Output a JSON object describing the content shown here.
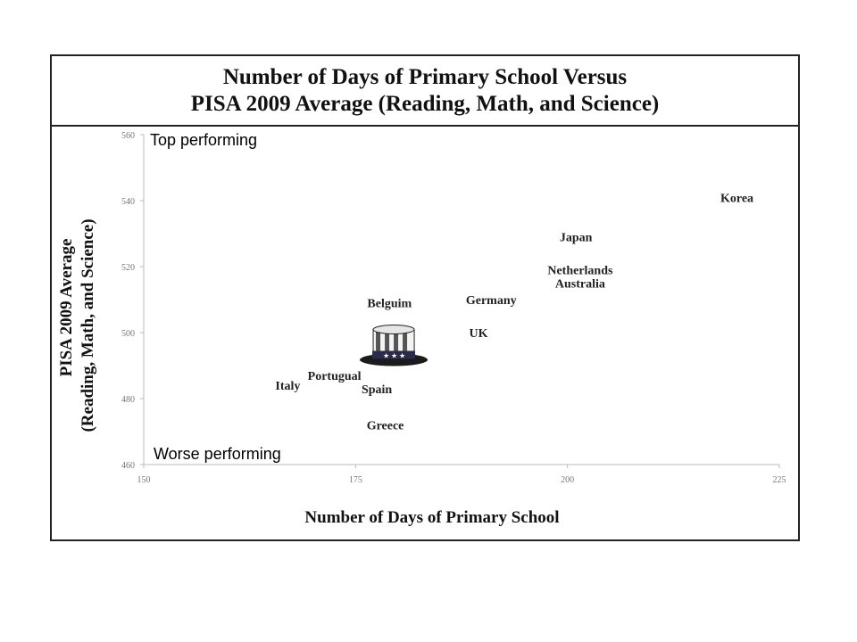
{
  "chart_data": {
    "type": "scatter",
    "title": [
      "Number  of Days of Primary  School Versus",
      "PISA 2009 Average (Reading,  Math, and  Science)"
    ],
    "xlabel": "Number of Days of Primary School",
    "ylabel": [
      "PISA 2009 Average",
      "(Reading, Math, and Science)"
    ],
    "xlim": [
      150,
      225
    ],
    "ylim": [
      460,
      560
    ],
    "xticks": [
      150,
      175,
      200,
      225
    ],
    "yticks": [
      460,
      480,
      500,
      520,
      540,
      560
    ],
    "points": [
      {
        "label": "Korea",
        "x": 220,
        "y": 541
      },
      {
        "label": "Japan",
        "x": 201,
        "y": 529
      },
      {
        "label": "Netherlands",
        "x": 201.5,
        "y": 519
      },
      {
        "label": "Australia",
        "x": 201.5,
        "y": 515
      },
      {
        "label": "Germany",
        "x": 191,
        "y": 510
      },
      {
        "label": "Belguim",
        "x": 179,
        "y": 509
      },
      {
        "label": "UK",
        "x": 189.5,
        "y": 500
      },
      {
        "label": "Portugual",
        "x": 172.5,
        "y": 487
      },
      {
        "label": "Italy",
        "x": 167,
        "y": 484
      },
      {
        "label": "Spain",
        "x": 177.5,
        "y": 483
      },
      {
        "label": "Greece",
        "x": 178.5,
        "y": 472
      }
    ],
    "annotations": {
      "top": "Top performing",
      "bottom": "Worse performing"
    },
    "marker": {
      "type": "uncle-sam-hat-icon",
      "x": 179.5,
      "y": 495
    }
  }
}
